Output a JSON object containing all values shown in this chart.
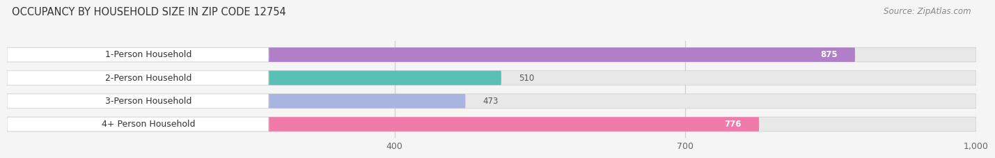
{
  "title": "OCCUPANCY BY HOUSEHOLD SIZE IN ZIP CODE 12754",
  "source": "Source: ZipAtlas.com",
  "categories": [
    "1-Person Household",
    "2-Person Household",
    "3-Person Household",
    "4+ Person Household"
  ],
  "values": [
    875,
    510,
    473,
    776
  ],
  "bar_colors": [
    "#b07fc7",
    "#5abfb4",
    "#aab4e0",
    "#f07aaa"
  ],
  "bar_bg_color": "#e8e8e8",
  "label_bg_color": "#ffffff",
  "xlim": [
    0,
    1000
  ],
  "xticks": [
    400,
    700,
    1000
  ],
  "figsize": [
    14.06,
    2.33
  ],
  "dpi": 100,
  "title_fontsize": 10.5,
  "source_fontsize": 8.5,
  "label_fontsize": 9,
  "value_fontsize": 8.5,
  "tick_fontsize": 9,
  "background_color": "#f5f5f5"
}
